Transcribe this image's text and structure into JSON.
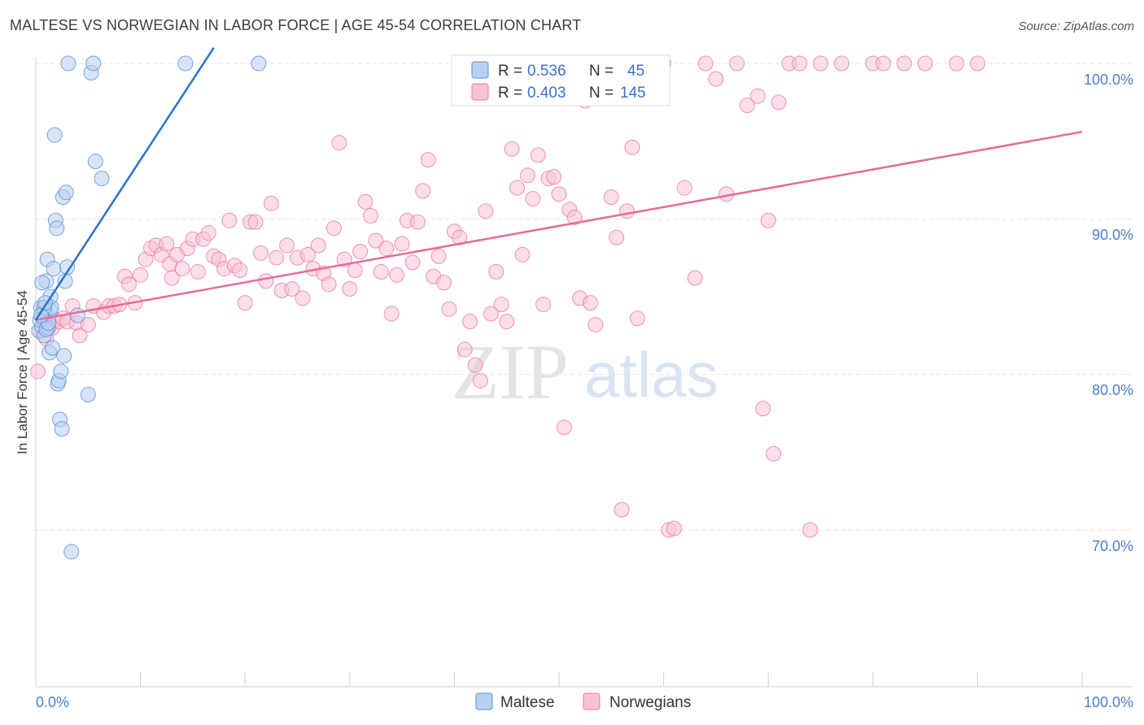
{
  "title": "MALTESE VS NORWEGIAN IN LABOR FORCE | AGE 45-54 CORRELATION CHART",
  "source": "Source: ZipAtlas.com",
  "watermark": {
    "zip": "ZIP",
    "atlas": "atlas"
  },
  "colors": {
    "maltese": "#5b8fd6",
    "norwegian": "#e87aa0",
    "maltese_fill": "#b8d0f2",
    "norwegian_fill": "#f7c3d3",
    "tick": "#4a7ecb"
  },
  "legend": {
    "maltese": {
      "r_label": "R =",
      "r_value": "0.536",
      "n_label": "N =",
      "n_value": "45"
    },
    "norwegian": {
      "r_label": "R =",
      "r_value": "0.403",
      "n_label": "N =",
      "n_value": "145"
    }
  },
  "chart_data": {
    "type": "scatter",
    "title": "MALTESE VS NORWEGIAN IN LABOR FORCE | AGE 45-54 CORRELATION CHART",
    "xlabel": "",
    "ylabel": "In Labor Force | Age 45-54",
    "xlim": [
      0,
      100
    ],
    "ylim": [
      60.5,
      101.5
    ],
    "x_tick_labels": [
      "0.0%",
      "100.0%"
    ],
    "y_ticks": [
      70,
      80,
      90,
      100
    ],
    "y_tick_labels": [
      "70.0%",
      "80.0%",
      "90.0%",
      "100.0%"
    ],
    "legend_entries": [
      "Maltese",
      "Norwegians"
    ],
    "series": [
      {
        "name": "Maltese",
        "trend": {
          "x": [
            0,
            17
          ],
          "y": [
            83.5,
            101.0
          ]
        },
        "points": [
          [
            0.3,
            82.8
          ],
          [
            0.5,
            84.3
          ],
          [
            0.6,
            83.1
          ],
          [
            0.7,
            83.6
          ],
          [
            0.8,
            82.5
          ],
          [
            0.9,
            84.0
          ],
          [
            1.0,
            86.0
          ],
          [
            1.1,
            87.4
          ],
          [
            1.2,
            83.0
          ],
          [
            1.3,
            81.4
          ],
          [
            1.4,
            84.1
          ],
          [
            1.5,
            84.3
          ],
          [
            1.6,
            81.7
          ],
          [
            1.7,
            86.8
          ],
          [
            1.8,
            95.4
          ],
          [
            1.9,
            89.9
          ],
          [
            2.0,
            89.4
          ],
          [
            2.1,
            79.4
          ],
          [
            2.2,
            79.6
          ],
          [
            2.3,
            77.1
          ],
          [
            2.4,
            80.2
          ],
          [
            2.5,
            76.5
          ],
          [
            2.6,
            91.4
          ],
          [
            2.7,
            81.2
          ],
          [
            2.8,
            86.0
          ],
          [
            2.9,
            91.7
          ],
          [
            3.0,
            86.9
          ],
          [
            3.1,
            100.0
          ],
          [
            3.4,
            68.6
          ],
          [
            4.0,
            83.8
          ],
          [
            5.0,
            78.7
          ],
          [
            5.3,
            99.4
          ],
          [
            5.5,
            100.0
          ],
          [
            5.7,
            93.7
          ],
          [
            6.3,
            92.6
          ],
          [
            14.3,
            100.0
          ],
          [
            21.3,
            100.0
          ],
          [
            0.4,
            83.5
          ],
          [
            0.6,
            85.9
          ],
          [
            0.8,
            84.3
          ],
          [
            1.0,
            82.9
          ],
          [
            1.2,
            83.3
          ],
          [
            1.4,
            85.0
          ],
          [
            0.5,
            83.8
          ],
          [
            0.9,
            84.6
          ]
        ]
      },
      {
        "name": "Norwegians",
        "trend": {
          "x": [
            0,
            100
          ],
          "y": [
            83.5,
            95.6
          ]
        },
        "points": [
          [
            0.2,
            80.2
          ],
          [
            0.5,
            82.8
          ],
          [
            0.8,
            83.5
          ],
          [
            1.0,
            82.3
          ],
          [
            1.3,
            83.1
          ],
          [
            1.6,
            83.0
          ],
          [
            1.9,
            83.5
          ],
          [
            2.2,
            83.4
          ],
          [
            2.6,
            83.6
          ],
          [
            3.0,
            83.4
          ],
          [
            3.5,
            84.4
          ],
          [
            3.9,
            83.3
          ],
          [
            4.2,
            82.5
          ],
          [
            5.0,
            83.2
          ],
          [
            5.5,
            84.4
          ],
          [
            6.5,
            84.0
          ],
          [
            7.0,
            84.4
          ],
          [
            7.5,
            84.4
          ],
          [
            8.0,
            84.5
          ],
          [
            8.5,
            86.3
          ],
          [
            8.9,
            85.8
          ],
          [
            9.5,
            84.6
          ],
          [
            10.0,
            86.4
          ],
          [
            10.5,
            87.4
          ],
          [
            11.0,
            88.1
          ],
          [
            11.5,
            88.3
          ],
          [
            12.0,
            87.7
          ],
          [
            12.5,
            88.4
          ],
          [
            12.8,
            87.1
          ],
          [
            13.0,
            86.2
          ],
          [
            13.5,
            87.7
          ],
          [
            14.0,
            86.8
          ],
          [
            14.5,
            88.1
          ],
          [
            15.0,
            88.7
          ],
          [
            15.5,
            86.6
          ],
          [
            16.0,
            88.7
          ],
          [
            16.5,
            89.1
          ],
          [
            17.0,
            87.6
          ],
          [
            17.5,
            87.4
          ],
          [
            18.0,
            86.8
          ],
          [
            18.5,
            89.9
          ],
          [
            19.0,
            87.0
          ],
          [
            19.5,
            86.7
          ],
          [
            20.0,
            84.6
          ],
          [
            20.5,
            89.8
          ],
          [
            21.0,
            89.8
          ],
          [
            21.5,
            87.8
          ],
          [
            22.0,
            86.0
          ],
          [
            22.5,
            91.0
          ],
          [
            23.0,
            87.5
          ],
          [
            23.5,
            85.4
          ],
          [
            24.0,
            88.3
          ],
          [
            24.5,
            85.5
          ],
          [
            25.0,
            87.5
          ],
          [
            25.5,
            84.9
          ],
          [
            26.0,
            87.7
          ],
          [
            26.5,
            86.8
          ],
          [
            27.0,
            88.3
          ],
          [
            27.5,
            86.5
          ],
          [
            28.0,
            85.8
          ],
          [
            28.5,
            89.4
          ],
          [
            29.0,
            94.9
          ],
          [
            29.5,
            87.4
          ],
          [
            30.0,
            85.5
          ],
          [
            30.5,
            86.7
          ],
          [
            31.0,
            87.9
          ],
          [
            31.5,
            91.1
          ],
          [
            32.0,
            90.2
          ],
          [
            32.5,
            88.6
          ],
          [
            33.0,
            86.6
          ],
          [
            33.5,
            88.1
          ],
          [
            34.0,
            83.9
          ],
          [
            34.5,
            86.4
          ],
          [
            35.0,
            88.4
          ],
          [
            35.5,
            89.9
          ],
          [
            36.0,
            87.2
          ],
          [
            36.5,
            89.8
          ],
          [
            37.0,
            91.8
          ],
          [
            37.5,
            93.8
          ],
          [
            38.0,
            86.3
          ],
          [
            38.5,
            87.6
          ],
          [
            39.0,
            85.9
          ],
          [
            39.5,
            84.2
          ],
          [
            40.0,
            89.2
          ],
          [
            40.5,
            88.8
          ],
          [
            41.0,
            81.6
          ],
          [
            41.5,
            83.4
          ],
          [
            42.0,
            80.6
          ],
          [
            42.5,
            79.6
          ],
          [
            43.0,
            90.5
          ],
          [
            43.5,
            83.9
          ],
          [
            44.0,
            86.6
          ],
          [
            44.5,
            84.5
          ],
          [
            45.0,
            83.4
          ],
          [
            45.5,
            94.5
          ],
          [
            46.0,
            92.0
          ],
          [
            46.5,
            87.7
          ],
          [
            47.0,
            92.8
          ],
          [
            47.5,
            91.3
          ],
          [
            48.0,
            94.1
          ],
          [
            48.5,
            84.5
          ],
          [
            49.0,
            92.6
          ],
          [
            49.5,
            92.7
          ],
          [
            50.0,
            91.6
          ],
          [
            50.5,
            76.6
          ],
          [
            51.0,
            90.6
          ],
          [
            51.5,
            90.1
          ],
          [
            52.0,
            84.9
          ],
          [
            52.5,
            97.6
          ],
          [
            53.0,
            84.6
          ],
          [
            53.5,
            83.2
          ],
          [
            54.0,
            99.6
          ],
          [
            54.5,
            100.0
          ],
          [
            55.0,
            91.4
          ],
          [
            55.5,
            88.8
          ],
          [
            56.0,
            71.3
          ],
          [
            56.5,
            90.5
          ],
          [
            57.0,
            94.6
          ],
          [
            57.5,
            83.6
          ],
          [
            60.0,
            100.0
          ],
          [
            60.5,
            70.0
          ],
          [
            61.0,
            70.1
          ],
          [
            62.0,
            92.0
          ],
          [
            63.0,
            86.2
          ],
          [
            64.0,
            100.0
          ],
          [
            65.0,
            99.0
          ],
          [
            66.0,
            91.6
          ],
          [
            67.0,
            100.0
          ],
          [
            68.0,
            97.3
          ],
          [
            69.0,
            97.9
          ],
          [
            69.5,
            77.8
          ],
          [
            70.0,
            89.9
          ],
          [
            70.5,
            74.9
          ],
          [
            71.0,
            97.5
          ],
          [
            72.0,
            100.0
          ],
          [
            73.0,
            100.0
          ],
          [
            74.0,
            70.0
          ],
          [
            75.0,
            100.0
          ],
          [
            77.0,
            100.0
          ],
          [
            80.0,
            100.0
          ],
          [
            81.0,
            100.0
          ],
          [
            83.0,
            100.0
          ],
          [
            85.0,
            100.0
          ],
          [
            88.0,
            100.0
          ],
          [
            90.0,
            100.0
          ]
        ]
      }
    ]
  }
}
